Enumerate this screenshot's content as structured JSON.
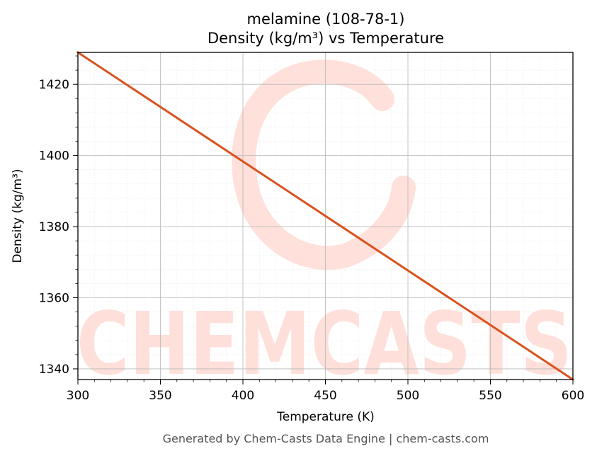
{
  "chart_data": {
    "type": "line",
    "title": "melamine (108-78-1)",
    "subtitle": "Density (kg/m³) vs Temperature",
    "xlabel": "Temperature (K)",
    "ylabel": "Density (kg/m³)",
    "xlim": [
      300,
      600
    ],
    "ylim": [
      1337,
      1429
    ],
    "xticks": [
      300,
      350,
      400,
      450,
      500,
      550,
      600
    ],
    "yticks": [
      1340,
      1360,
      1380,
      1400,
      1420
    ],
    "grid": true,
    "series": [
      {
        "x": [
          300,
          600
        ],
        "y": [
          1429,
          1337
        ]
      }
    ],
    "line_color": "#d9521e"
  },
  "watermark": "CHEMCASTS",
  "footer": "Generated by Chem-Casts Data Engine | chem-casts.com"
}
